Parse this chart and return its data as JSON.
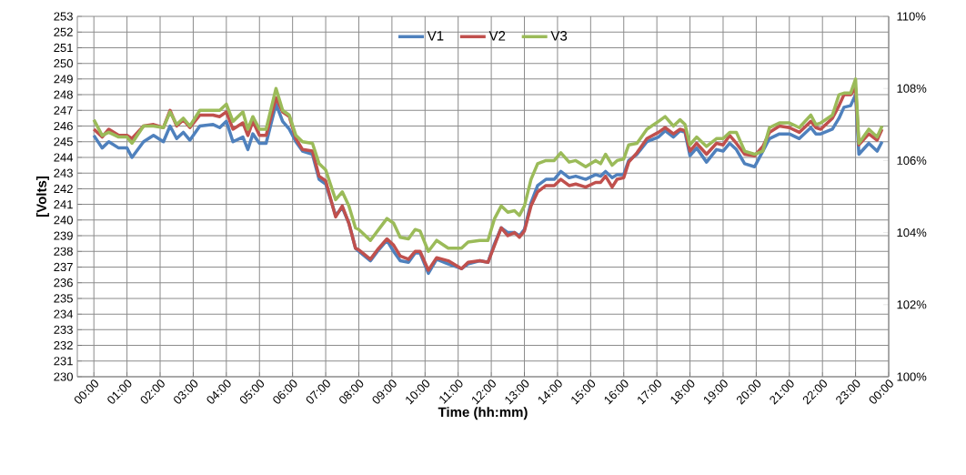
{
  "chart_data": {
    "type": "line",
    "xlabel": "Time (hh:mm)",
    "ylabel": "[Volts]",
    "x": [
      0,
      0.25,
      0.45,
      0.75,
      1,
      1.15,
      1.5,
      1.8,
      2.1,
      2.3,
      2.5,
      2.7,
      2.9,
      3.2,
      3.6,
      3.8,
      4,
      4.2,
      4.5,
      4.65,
      4.8,
      5,
      5.2,
      5.5,
      5.7,
      5.9,
      6.1,
      6.3,
      6.6,
      6.8,
      7,
      7.3,
      7.5,
      7.7,
      7.9,
      8,
      8.35,
      8.6,
      8.85,
      9.05,
      9.25,
      9.5,
      9.7,
      9.85,
      10.1,
      10.35,
      10.7,
      11.1,
      11.3,
      11.65,
      11.9,
      12.1,
      12.3,
      12.5,
      12.7,
      12.85,
      13,
      13.2,
      13.4,
      13.65,
      13.9,
      14.1,
      14.35,
      14.55,
      14.85,
      15.15,
      15.3,
      15.45,
      15.65,
      15.8,
      16,
      16.15,
      16.4,
      16.7,
      17.05,
      17.25,
      17.5,
      17.7,
      17.85,
      18,
      18.2,
      18.5,
      18.8,
      19,
      19.2,
      19.4,
      19.65,
      19.95,
      20.2,
      20.4,
      20.7,
      21,
      21.3,
      21.65,
      21.8,
      21.95,
      22.3,
      22.5,
      22.65,
      22.85,
      23,
      23.1,
      23.4,
      23.65,
      23.8
    ],
    "series": [
      {
        "name": "V1",
        "color": "#4f81bd",
        "values": [
          245.4,
          244.6,
          245.0,
          244.6,
          244.6,
          244.0,
          245.0,
          245.4,
          245.0,
          246.0,
          245.2,
          245.6,
          245.1,
          246.0,
          246.1,
          245.9,
          246.3,
          245.0,
          245.3,
          244.5,
          245.5,
          244.9,
          244.9,
          247.4,
          246.3,
          245.8,
          245.0,
          244.4,
          244.2,
          242.6,
          242.3,
          240.3,
          240.8,
          239.8,
          238.2,
          238.0,
          237.4,
          238.1,
          238.7,
          238.0,
          237.4,
          237.3,
          237.9,
          237.9,
          236.6,
          237.5,
          237.2,
          236.9,
          237.2,
          237.4,
          237.3,
          238.5,
          239.5,
          239.2,
          239.2,
          239.0,
          239.4,
          241.1,
          242.2,
          242.6,
          242.6,
          243.1,
          242.7,
          242.8,
          242.6,
          242.9,
          242.8,
          243.1,
          242.7,
          242.9,
          242.9,
          243.8,
          244.2,
          245.0,
          245.3,
          245.7,
          245.3,
          245.7,
          245.6,
          244.1,
          244.6,
          243.7,
          244.5,
          244.4,
          244.9,
          244.5,
          243.6,
          243.4,
          244.4,
          245.2,
          245.5,
          245.5,
          245.2,
          245.9,
          245.5,
          245.5,
          245.8,
          246.5,
          247.2,
          247.3,
          248.0,
          244.2,
          244.9,
          244.4,
          245.0
        ]
      },
      {
        "name": "V2",
        "color": "#c0504d",
        "values": [
          245.8,
          245.3,
          245.8,
          245.4,
          245.4,
          245.2,
          246.0,
          246.1,
          245.9,
          247.0,
          246.0,
          246.4,
          245.9,
          246.7,
          246.7,
          246.6,
          246.9,
          245.8,
          246.2,
          245.4,
          246.3,
          245.4,
          245.4,
          247.8,
          246.9,
          246.6,
          245.2,
          244.5,
          244.4,
          242.8,
          242.5,
          240.2,
          240.9,
          239.8,
          238.2,
          238.1,
          237.5,
          238.2,
          238.8,
          238.4,
          237.7,
          237.5,
          238.0,
          238.0,
          236.8,
          237.6,
          237.4,
          236.9,
          237.3,
          237.4,
          237.3,
          238.4,
          239.5,
          239.0,
          239.2,
          238.9,
          239.3,
          240.9,
          241.8,
          242.2,
          242.2,
          242.6,
          242.2,
          242.3,
          242.1,
          242.4,
          242.4,
          242.8,
          242.1,
          242.6,
          242.7,
          243.7,
          244.3,
          245.2,
          245.6,
          245.9,
          245.5,
          245.8,
          245.7,
          244.4,
          244.9,
          244.2,
          244.9,
          244.8,
          245.4,
          244.9,
          244.2,
          244.1,
          244.7,
          245.6,
          246.0,
          245.9,
          245.6,
          246.3,
          245.9,
          245.8,
          246.5,
          247.3,
          248.0,
          248.0,
          248.4,
          244.8,
          245.5,
          245.1,
          245.8
        ]
      },
      {
        "name": "V3",
        "color": "#9bbb59",
        "values": [
          246.4,
          245.4,
          245.6,
          245.3,
          245.3,
          244.9,
          246.0,
          246.0,
          245.9,
          246.9,
          246.1,
          246.5,
          246.0,
          247.0,
          247.0,
          247.0,
          247.4,
          246.3,
          246.9,
          245.8,
          246.6,
          245.8,
          245.8,
          248.4,
          247.0,
          246.7,
          245.4,
          245.0,
          244.9,
          243.6,
          243.2,
          241.3,
          241.8,
          240.9,
          239.5,
          239.4,
          238.7,
          239.4,
          240.1,
          239.8,
          238.9,
          238.8,
          239.4,
          239.3,
          238.0,
          238.7,
          238.2,
          238.2,
          238.6,
          238.7,
          238.7,
          240.1,
          240.9,
          240.5,
          240.6,
          240.3,
          240.9,
          242.6,
          243.6,
          243.8,
          243.8,
          244.3,
          243.7,
          243.8,
          243.4,
          243.8,
          243.6,
          244.2,
          243.5,
          243.8,
          243.9,
          244.8,
          244.9,
          245.8,
          246.3,
          246.6,
          246.0,
          246.4,
          246.1,
          244.8,
          245.3,
          244.7,
          245.2,
          245.2,
          245.6,
          245.6,
          244.4,
          244.2,
          244.4,
          245.9,
          246.2,
          246.2,
          245.9,
          246.7,
          246.1,
          246.2,
          246.7,
          248.0,
          248.1,
          248.1,
          249.0,
          244.9,
          245.8,
          245.3,
          246.0
        ]
      }
    ],
    "xlim": [
      -0.5,
      24
    ],
    "ylim": [
      230,
      253
    ],
    "xticks": [
      {
        "value": 0,
        "label": "00:00"
      },
      {
        "value": 1,
        "label": "01:00"
      },
      {
        "value": 2,
        "label": "02:00"
      },
      {
        "value": 3,
        "label": "03:00"
      },
      {
        "value": 4,
        "label": "04:00"
      },
      {
        "value": 5,
        "label": "05:00"
      },
      {
        "value": 6,
        "label": "06:00"
      },
      {
        "value": 7,
        "label": "07:00"
      },
      {
        "value": 8,
        "label": "08:00"
      },
      {
        "value": 9,
        "label": "09:00"
      },
      {
        "value": 10,
        "label": "10:00"
      },
      {
        "value": 11,
        "label": "11:00"
      },
      {
        "value": 12,
        "label": "12:00"
      },
      {
        "value": 13,
        "label": "13:00"
      },
      {
        "value": 14,
        "label": "14:00"
      },
      {
        "value": 15,
        "label": "15:00"
      },
      {
        "value": 16,
        "label": "16:00"
      },
      {
        "value": 17,
        "label": "17:00"
      },
      {
        "value": 18,
        "label": "18:00"
      },
      {
        "value": 19,
        "label": "19:00"
      },
      {
        "value": 20,
        "label": "20:00"
      },
      {
        "value": 21,
        "label": "21:00"
      },
      {
        "value": 22,
        "label": "22:00"
      },
      {
        "value": 23,
        "label": "23:00"
      },
      {
        "value": 24,
        "label": "00:00"
      }
    ],
    "yticks": [
      230,
      231,
      232,
      233,
      234,
      235,
      236,
      237,
      238,
      239,
      240,
      241,
      242,
      243,
      244,
      245,
      246,
      247,
      248,
      249,
      250,
      251,
      252,
      253
    ],
    "y2lim": [
      100,
      110
    ],
    "y2ticks": [
      {
        "value": 100,
        "label": "100%"
      },
      {
        "value": 102,
        "label": "102%"
      },
      {
        "value": 104,
        "label": "104%"
      },
      {
        "value": 106,
        "label": "106%"
      },
      {
        "value": 108,
        "label": "108%"
      },
      {
        "value": 110,
        "label": "110%"
      }
    ],
    "grid": true,
    "legend": "top",
    "marker": "none"
  }
}
